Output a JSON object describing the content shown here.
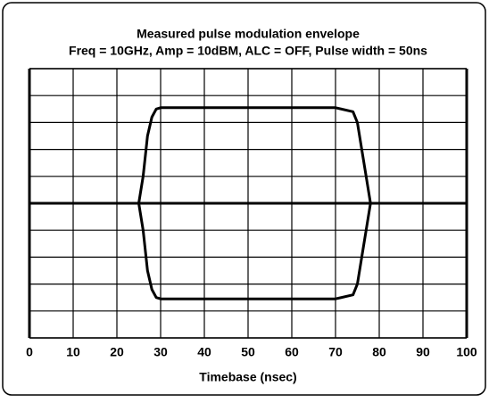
{
  "chart_data": {
    "type": "line",
    "title": "Measured pulse modulation envelope",
    "subtitle": "Freq = 10GHz, Amp = 10dBM, ALC = OFF, Pulse width = 50ns",
    "xlabel": "Timebase (nsec)",
    "x": [
      0,
      25,
      26,
      27,
      28,
      29,
      30,
      70,
      74,
      75,
      76,
      77,
      78,
      100
    ],
    "series": [
      {
        "color": "#000000",
        "values": [
          0,
          0,
          1,
          2.5,
          3.2,
          3.5,
          3.55,
          3.55,
          3.4,
          3,
          2,
          1,
          0,
          0
        ]
      },
      {
        "color": "#000000",
        "values": [
          0,
          0,
          -1,
          -2.5,
          -3.2,
          -3.5,
          -3.55,
          -3.55,
          -3.4,
          -3,
          -2,
          -1,
          0,
          0
        ]
      }
    ],
    "xlim": [
      0,
      100
    ],
    "xticks": [
      0,
      10,
      20,
      30,
      40,
      50,
      60,
      70,
      80,
      90,
      100
    ],
    "ylim": [
      -5,
      5
    ],
    "yticks": [
      -5,
      -4,
      -3,
      -2,
      -1,
      0,
      1,
      2,
      3,
      4,
      5
    ],
    "grid": true
  }
}
